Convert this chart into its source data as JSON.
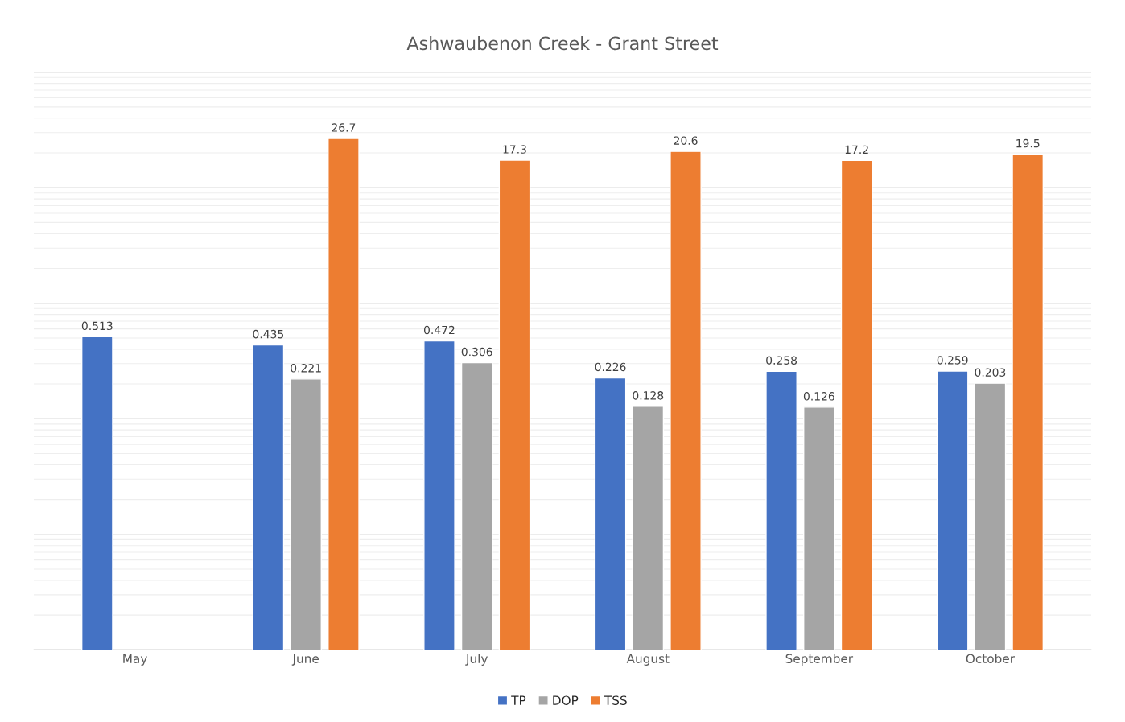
{
  "chart_data": {
    "type": "bar",
    "title": "Ashwaubenon Creek - Grant Street",
    "categories": [
      "May",
      "June",
      "July",
      "August",
      "September",
      "October"
    ],
    "series": [
      {
        "name": "TP",
        "color": "#4472c4",
        "values": [
          0.513,
          0.435,
          0.472,
          0.226,
          0.258,
          0.259
        ]
      },
      {
        "name": "DOP",
        "color": "#a5a5a5",
        "values": [
          null,
          0.221,
          0.306,
          0.128,
          0.126,
          0.203
        ]
      },
      {
        "name": "TSS",
        "color": "#ed7d31",
        "values": [
          null,
          26.7,
          17.3,
          20.6,
          17.2,
          19.5
        ]
      }
    ],
    "log": true,
    "ylim": [
      0.001,
      100
    ],
    "yticks": [
      {
        "value": 0.001,
        "label": null
      },
      {
        "value": 0.01,
        "label": null
      },
      {
        "value": 0.1,
        "label": null
      },
      {
        "value": 1,
        "label": null
      },
      {
        "value": 10,
        "label": null
      },
      {
        "value": 100,
        "label": null
      }
    ],
    "tick_labels": "x",
    "grid": "y",
    "data_labels": true,
    "legend": "bottom"
  }
}
